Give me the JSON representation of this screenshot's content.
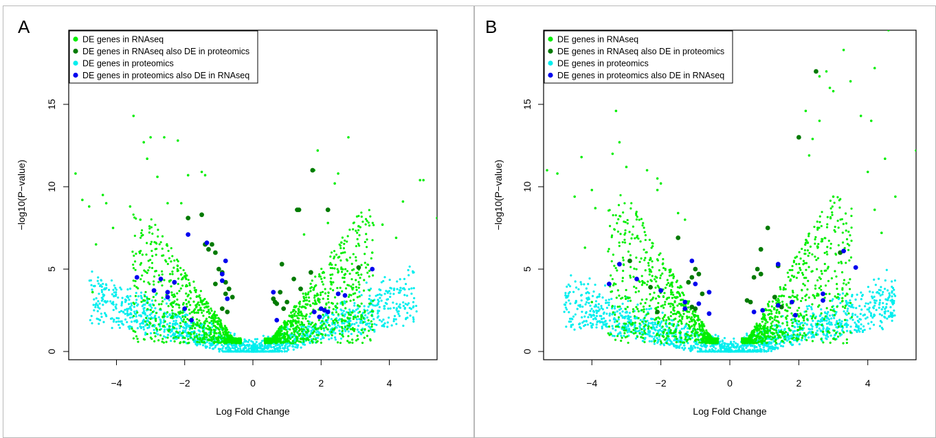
{
  "panels": [
    {
      "letter": "A"
    },
    {
      "letter": "B"
    }
  ],
  "legend": {
    "items": [
      {
        "label": "DE genes in RNAseq",
        "color": "#00ee00"
      },
      {
        "label": "DE genes in RNAseq also DE in proteomics",
        "color": "#007a00"
      },
      {
        "label": "DE genes in proteomics",
        "color": "#00eeee"
      },
      {
        "label": "DE genes in proteomics also DE in RNAseq",
        "color": "#0000ee"
      }
    ]
  },
  "chart_data": [
    {
      "type": "scatter",
      "panel": "A",
      "xlabel": "Log Fold Change",
      "ylabel": "−log10(P−value)",
      "xlim": [
        -5.4,
        5.4
      ],
      "ylim": [
        -0.5,
        19.5
      ],
      "x_ticks": [
        -4,
        -2,
        0,
        2,
        4
      ],
      "y_ticks": [
        0,
        5,
        10,
        15
      ],
      "x_tick_labels": [
        "−4",
        "−2",
        "0",
        "2",
        "4"
      ],
      "y_tick_labels": [
        "0",
        "5",
        "10",
        "15"
      ],
      "grid": false,
      "legend_position": "top-left",
      "series": [
        {
          "name": "DE genes in RNAseq",
          "color": "#00ee00",
          "points": [
            [
              -5.2,
              10.8
            ],
            [
              -5.0,
              9.2
            ],
            [
              -4.8,
              8.8
            ],
            [
              -4.4,
              9.5
            ],
            [
              -4.3,
              9.0
            ],
            [
              -4.6,
              6.5
            ],
            [
              -4.7,
              3.6
            ],
            [
              -4.1,
              7.5
            ],
            [
              -3.5,
              14.3
            ],
            [
              -3.2,
              12.7
            ],
            [
              -3.0,
              13.0
            ],
            [
              -3.1,
              11.7
            ],
            [
              -2.8,
              10.6
            ],
            [
              -2.6,
              13.0
            ],
            [
              -2.2,
              12.8
            ],
            [
              -1.9,
              10.7
            ],
            [
              -1.5,
              10.9
            ],
            [
              -1.4,
              10.7
            ],
            [
              -2.5,
              9.0
            ],
            [
              -3.3,
              8.0
            ],
            [
              -3.6,
              8.8
            ],
            [
              -2.1,
              9.0
            ],
            [
              1.9,
              12.2
            ],
            [
              2.8,
              13.0
            ],
            [
              2.5,
              10.8
            ],
            [
              2.4,
              10.2
            ],
            [
              1.8,
              11.0
            ],
            [
              4.9,
              10.4
            ],
            [
              5.0,
              10.4
            ],
            [
              5.4,
              8.1
            ],
            [
              4.4,
              9.1
            ],
            [
              3.8,
              7.7
            ],
            [
              4.2,
              6.9
            ],
            [
              3.1,
              7.6
            ],
            [
              3.5,
              6.0
            ],
            [
              2.2,
              7.8
            ],
            [
              1.5,
              7.1
            ]
          ]
        },
        {
          "name": "DE genes in RNAseq also DE in proteomics",
          "color": "#007a00",
          "points": [
            [
              -1.9,
              8.1
            ],
            [
              -1.5,
              8.3
            ],
            [
              -1.4,
              6.5
            ],
            [
              -1.3,
              6.2
            ],
            [
              -1.2,
              6.5
            ],
            [
              -1.1,
              6.0
            ],
            [
              -1.0,
              5.0
            ],
            [
              -0.9,
              4.8
            ],
            [
              -0.8,
              4.2
            ],
            [
              -0.8,
              3.5
            ],
            [
              -0.7,
              3.8
            ],
            [
              -0.6,
              3.3
            ],
            [
              -1.1,
              4.1
            ],
            [
              -0.9,
              2.6
            ],
            [
              -0.75,
              2.4
            ],
            [
              0.6,
              3.2
            ],
            [
              0.7,
              2.9
            ],
            [
              0.8,
              3.6
            ],
            [
              0.85,
              5.3
            ],
            [
              0.9,
              2.6
            ],
            [
              1.2,
              4.4
            ],
            [
              1.3,
              8.6
            ],
            [
              1.35,
              8.6
            ],
            [
              1.4,
              3.8
            ],
            [
              1.7,
              4.8
            ],
            [
              1.75,
              11.0
            ],
            [
              2.2,
              8.6
            ],
            [
              3.1,
              5.1
            ],
            [
              0.65,
              3.0
            ],
            [
              1.0,
              3.0
            ]
          ]
        },
        {
          "name": "DE genes in proteomics",
          "color": "#00eeee",
          "points": []
        },
        {
          "name": "DE genes in proteomics also DE in RNAseq",
          "color": "#0000ee",
          "points": [
            [
              -3.4,
              4.5
            ],
            [
              -2.9,
              3.7
            ],
            [
              -2.7,
              4.4
            ],
            [
              -2.5,
              3.6
            ],
            [
              -2.5,
              3.3
            ],
            [
              -2.3,
              4.2
            ],
            [
              -2.0,
              2.6
            ],
            [
              -1.8,
              1.9
            ],
            [
              -1.9,
              7.1
            ],
            [
              -1.35,
              6.6
            ],
            [
              -0.8,
              5.5
            ],
            [
              -0.9,
              4.7
            ],
            [
              -0.9,
              4.3
            ],
            [
              -0.75,
              3.2
            ],
            [
              0.6,
              3.6
            ],
            [
              0.7,
              1.9
            ],
            [
              1.8,
              2.4
            ],
            [
              1.95,
              2.1
            ],
            [
              2.0,
              2.6
            ],
            [
              2.1,
              2.5
            ],
            [
              2.2,
              2.4
            ],
            [
              2.5,
              3.5
            ],
            [
              2.7,
              3.4
            ],
            [
              3.5,
              5.0
            ]
          ]
        }
      ]
    },
    {
      "type": "scatter",
      "panel": "B",
      "xlabel": "Log Fold Change",
      "ylabel": "−log10(P−value)",
      "xlim": [
        -5.4,
        5.4
      ],
      "ylim": [
        -0.5,
        19.5
      ],
      "x_ticks": [
        -4,
        -2,
        0,
        2,
        4
      ],
      "y_ticks": [
        0,
        5,
        10,
        15
      ],
      "x_tick_labels": [
        "−4",
        "−2",
        "0",
        "2",
        "4"
      ],
      "y_tick_labels": [
        "0",
        "5",
        "10",
        "15"
      ],
      "grid": false,
      "legend_position": "top-left",
      "series": [
        {
          "name": "DE genes in RNAseq",
          "color": "#00ee00",
          "points": [
            [
              -5.3,
              11.0
            ],
            [
              -5.0,
              10.8
            ],
            [
              -4.3,
              11.8
            ],
            [
              -4.0,
              9.8
            ],
            [
              -4.5,
              9.4
            ],
            [
              -3.9,
              8.7
            ],
            [
              -3.3,
              14.6
            ],
            [
              -3.4,
              12.0
            ],
            [
              -3.2,
              12.7
            ],
            [
              -3.0,
              11.2
            ],
            [
              -2.4,
              11.0
            ],
            [
              -2.1,
              10.5
            ],
            [
              -2.1,
              9.8
            ],
            [
              -2.0,
              10.2
            ],
            [
              -1.5,
              8.4
            ],
            [
              -1.3,
              8.0
            ],
            [
              -4.2,
              6.3
            ],
            [
              -4.0,
              3.0
            ],
            [
              4.6,
              19.5
            ],
            [
              3.3,
              18.3
            ],
            [
              3.5,
              16.4
            ],
            [
              2.9,
              16.0
            ],
            [
              2.6,
              14.0
            ],
            [
              2.2,
              14.6
            ],
            [
              2.0,
              13.0
            ],
            [
              4.2,
              17.2
            ],
            [
              3.8,
              14.3
            ],
            [
              4.1,
              14.0
            ],
            [
              4.5,
              11.7
            ],
            [
              5.4,
              12.2
            ],
            [
              4.8,
              9.4
            ],
            [
              4.0,
              10.9
            ],
            [
              3.0,
              9.4
            ],
            [
              4.2,
              8.6
            ],
            [
              4.4,
              7.2
            ],
            [
              2.7,
              1.2
            ],
            [
              2.6,
              16.7
            ],
            [
              2.8,
              17.0
            ],
            [
              3.0,
              15.8
            ],
            [
              2.3,
              11.9
            ],
            [
              2.4,
              12.9
            ]
          ]
        },
        {
          "name": "DE genes in RNAseq also DE in proteomics",
          "color": "#007a00",
          "points": [
            [
              -2.9,
              5.5
            ],
            [
              -2.3,
              3.9
            ],
            [
              -2.1,
              2.4
            ],
            [
              -1.5,
              6.9
            ],
            [
              -1.2,
              4.2
            ],
            [
              -1.1,
              4.5
            ],
            [
              -1.0,
              5.0
            ],
            [
              -0.9,
              4.7
            ],
            [
              -1.1,
              2.7
            ],
            [
              -1.0,
              2.6
            ],
            [
              -0.8,
              3.5
            ],
            [
              0.5,
              3.1
            ],
            [
              0.7,
              4.5
            ],
            [
              0.8,
              5.0
            ],
            [
              0.9,
              6.2
            ],
            [
              0.9,
              4.7
            ],
            [
              1.1,
              7.5
            ],
            [
              1.4,
              5.2
            ],
            [
              1.3,
              3.3
            ],
            [
              1.5,
              2.7
            ],
            [
              2.0,
              13.0
            ],
            [
              2.5,
              17.0
            ],
            [
              3.2,
              6.0
            ],
            [
              0.6,
              3.0
            ]
          ]
        },
        {
          "name": "DE genes in proteomics",
          "color": "#00eeee",
          "points": []
        },
        {
          "name": "DE genes in proteomics also DE in RNAseq",
          "color": "#0000ee",
          "points": [
            [
              -3.5,
              4.1
            ],
            [
              -3.2,
              5.3
            ],
            [
              -2.7,
              4.4
            ],
            [
              -2.0,
              3.7
            ],
            [
              -1.3,
              3.0
            ],
            [
              -1.3,
              2.6
            ],
            [
              -1.0,
              4.1
            ],
            [
              -1.1,
              5.5
            ],
            [
              -0.9,
              2.9
            ],
            [
              -0.6,
              3.6
            ],
            [
              -0.6,
              2.3
            ],
            [
              0.7,
              2.4
            ],
            [
              0.95,
              2.5
            ],
            [
              1.4,
              2.8
            ],
            [
              1.4,
              5.3
            ],
            [
              1.8,
              3.0
            ],
            [
              1.9,
              2.2
            ],
            [
              2.7,
              3.1
            ],
            [
              2.7,
              3.5
            ],
            [
              3.3,
              6.1
            ],
            [
              3.65,
              5.1
            ]
          ]
        }
      ]
    }
  ]
}
